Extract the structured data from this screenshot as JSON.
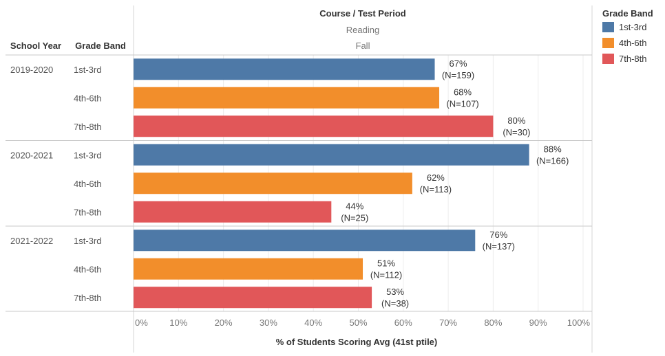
{
  "header": {
    "row_header_1": "School Year",
    "row_header_2": "Grade Band",
    "col_header": "Course / Test Period",
    "course": "Reading",
    "period": "Fall"
  },
  "legend": {
    "title": "Grade Band",
    "items": [
      {
        "label": "1st-3rd",
        "color": "#4e79a7"
      },
      {
        "label": "4th-6th",
        "color": "#f28e2b"
      },
      {
        "label": "7th-8th",
        "color": "#e15759"
      }
    ]
  },
  "chart_data": {
    "type": "bar",
    "orientation": "horizontal",
    "xlabel": "% of Students Scoring Avg (41st ptile)",
    "xlim": [
      0,
      100
    ],
    "ticks": [
      "0%",
      "10%",
      "20%",
      "30%",
      "40%",
      "50%",
      "60%",
      "70%",
      "80%",
      "90%",
      "100%"
    ],
    "grid": true,
    "groups": [
      {
        "year": "2019-2020",
        "bars": [
          {
            "band": "1st-3rd",
            "value": 67,
            "label": "67%",
            "n": "(N=159)"
          },
          {
            "band": "4th-6th",
            "value": 68,
            "label": "68%",
            "n": "(N=107)"
          },
          {
            "band": "7th-8th",
            "value": 80,
            "label": "80%",
            "n": "(N=30)"
          }
        ]
      },
      {
        "year": "2020-2021",
        "bars": [
          {
            "band": "1st-3rd",
            "value": 88,
            "label": "88%",
            "n": "(N=166)"
          },
          {
            "band": "4th-6th",
            "value": 62,
            "label": "62%",
            "n": "(N=113)"
          },
          {
            "band": "7th-8th",
            "value": 44,
            "label": "44%",
            "n": "(N=25)"
          }
        ]
      },
      {
        "year": "2021-2022",
        "bars": [
          {
            "band": "1st-3rd",
            "value": 76,
            "label": "76%",
            "n": "(N=137)"
          },
          {
            "band": "4th-6th",
            "value": 51,
            "label": "51%",
            "n": "(N=112)"
          },
          {
            "band": "7th-8th",
            "value": 53,
            "label": "53%",
            "n": "(N=38)"
          }
        ]
      }
    ]
  }
}
